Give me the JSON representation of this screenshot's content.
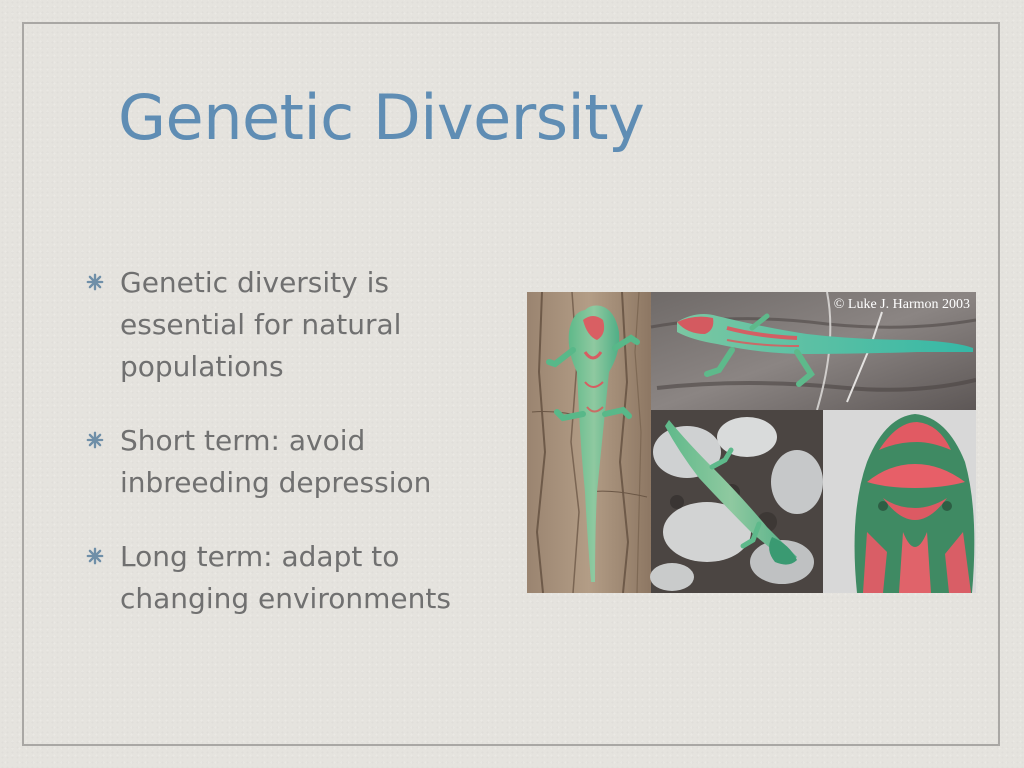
{
  "slide": {
    "title": "Genetic Diversity",
    "bullets": [
      {
        "text": "Genetic diversity is essential for natural populations",
        "icon": "asterisk-bullet-icon"
      },
      {
        "text": "Short term: avoid inbreeding depression",
        "icon": "asterisk-bullet-icon"
      },
      {
        "text": "Long term: adapt to changing environments",
        "icon": "asterisk-bullet-icon"
      }
    ],
    "photo": {
      "credit": "© Luke J. Harmon 2003"
    }
  },
  "colors": {
    "title": "#5f8db4",
    "body_text": "#707070",
    "bullet": "#6f8fa8",
    "frame": "#a9a7a4",
    "background": "#e5e3de"
  }
}
